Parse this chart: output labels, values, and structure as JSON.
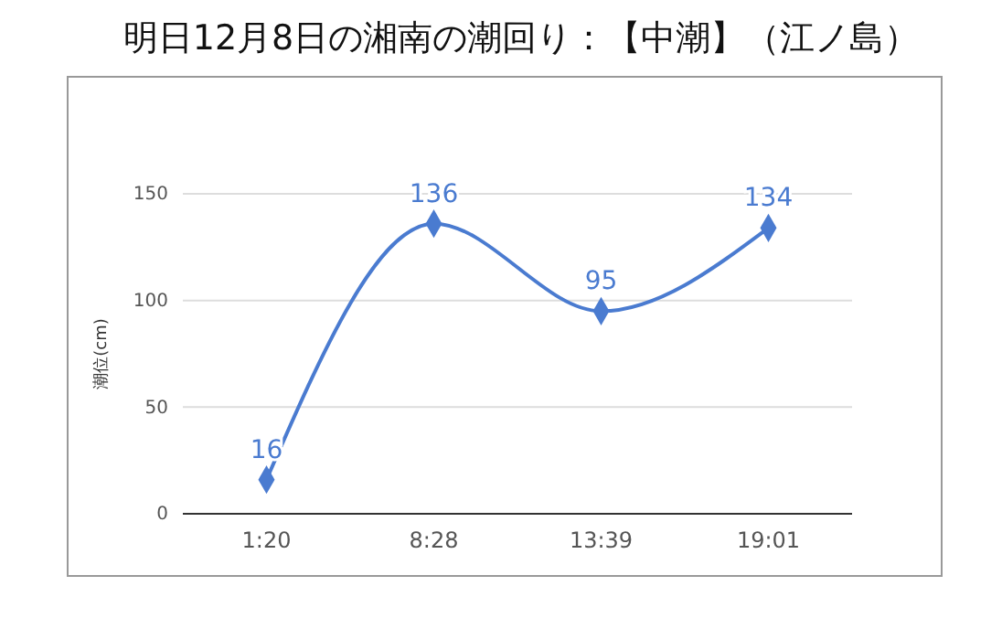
{
  "chart_data": {
    "type": "line",
    "title": "明日12月8日の湘南の潮回り：【中潮】（江ノ島）",
    "ylabel": "潮位(cm)",
    "categories": [
      "1:20",
      "8:28",
      "13:39",
      "19:01"
    ],
    "series": [
      {
        "color": "#4a7bd0",
        "values": [
          16,
          136,
          95,
          134
        ]
      }
    ],
    "ylim": [
      0,
      150
    ],
    "yticks": [
      0,
      50,
      100,
      150
    ],
    "grid": "y",
    "marker": "diamond",
    "line_style": "solid",
    "data_labels": true
  }
}
